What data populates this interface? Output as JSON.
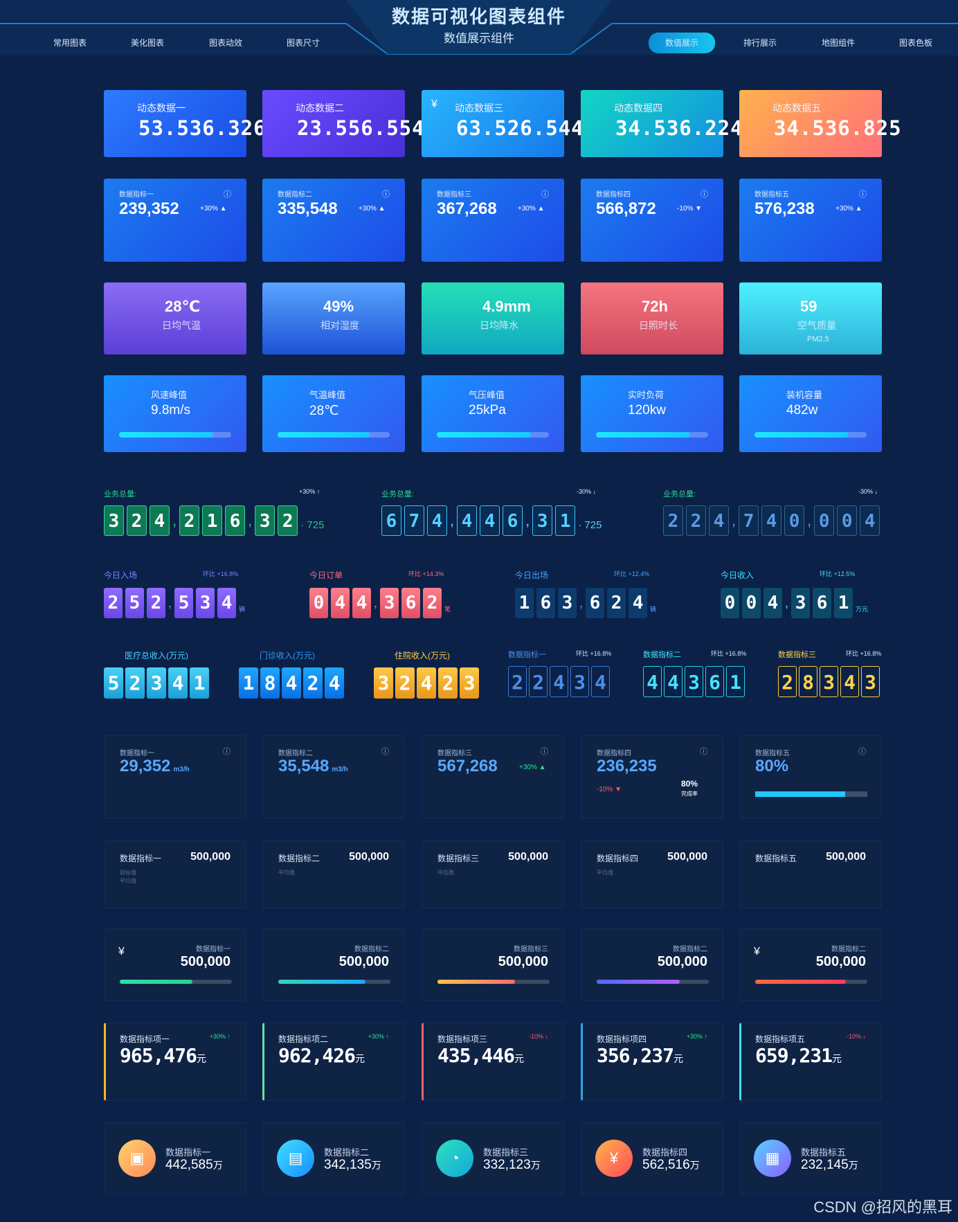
{
  "header": {
    "title": "数据可视化图表组件",
    "subtitle": "数值展示组件"
  },
  "nav": [
    "常用图表",
    "美化图表",
    "图表动效",
    "图表尺寸",
    "数值展示",
    "排行展示",
    "地图组件",
    "图表色板"
  ],
  "dynamic": [
    {
      "label": "动态数据一",
      "value": "53.536.326"
    },
    {
      "label": "动态数据二",
      "value": "23.556.554"
    },
    {
      "label": "动态数据三",
      "value": "63.526.544"
    },
    {
      "label": "动态数据四",
      "value": "34.536.224"
    },
    {
      "label": "动态数据五",
      "value": "34.536.825"
    }
  ],
  "kpi": [
    {
      "label": "数据指标一",
      "value": "239,352",
      "change": "+30%"
    },
    {
      "label": "数据指标二",
      "value": "335,548",
      "change": "+30%"
    },
    {
      "label": "数据指标三",
      "value": "367,268",
      "change": "+30%"
    },
    {
      "label": "数据指标四",
      "value": "566,872",
      "change": "-10%"
    },
    {
      "label": "数据指标五",
      "value": "576,238",
      "change": "+30%"
    }
  ],
  "weather": [
    {
      "value": "28℃",
      "label": "日均气温"
    },
    {
      "value": "49%",
      "label": "相对湿度"
    },
    {
      "value": "4.9mm",
      "label": "日均降水"
    },
    {
      "value": "72h",
      "label": "日照时长"
    },
    {
      "value": "59",
      "label": "空气质量",
      "sub": "PM2.5"
    }
  ],
  "progress": [
    {
      "label": "风速峰值",
      "value": "9.8m/s",
      "fill": 0.84
    },
    {
      "label": "气温峰值",
      "value": "28℃",
      "fill": 0.82
    },
    {
      "label": "气压峰值",
      "value": "25kPa",
      "fill": 0.84
    },
    {
      "label": "实时负荷",
      "value": "120kw",
      "fill": 0.84
    },
    {
      "label": "装机容量",
      "value": "482w",
      "fill": 0.84
    }
  ],
  "totals": [
    {
      "label": "业务总量:",
      "change": "+30%",
      "digits": "324,216,32",
      "tail": "725"
    },
    {
      "label": "业务总量:",
      "change": "-30%",
      "digits": "674,446,31",
      "tail": "725"
    },
    {
      "label": "业务总量:",
      "change": "-30%",
      "digits": "224,740,004",
      "tail": ""
    }
  ],
  "today": [
    {
      "label": "今日入场",
      "change": "环比 +16.8%",
      "digits": "252,534",
      "unit": "辆"
    },
    {
      "label": "今日订单",
      "change": "环比 +14.3%",
      "digits": "044,362",
      "unit": "笔"
    },
    {
      "label": "今日出场",
      "change": "环比 +12.4%",
      "digits": "163,624",
      "unit": "辆"
    },
    {
      "label": "今日收入",
      "change": "环比 +12.5%",
      "digits": "004,361",
      "unit": "万元"
    }
  ],
  "income": [
    {
      "label": "医疗总收入(万元)",
      "digits": "52341"
    },
    {
      "label": "门诊收入(万元)",
      "digits": "18424"
    },
    {
      "label": "住院收入(万元)",
      "digits": "32423"
    }
  ],
  "idx": [
    {
      "label": "数据指标一",
      "change": "环比 +16.8%",
      "digits": "22434"
    },
    {
      "label": "数据指标二",
      "change": "环比 +16.8%",
      "digits": "44361"
    },
    {
      "label": "数据指标三",
      "change": "环比 +16.8%",
      "digits": "28343"
    }
  ],
  "dark1": [
    {
      "label": "数据指标一",
      "value": "29,352",
      "unit": "m3/h"
    },
    {
      "label": "数据指标二",
      "value": "35,548",
      "unit": "m3/h"
    },
    {
      "label": "数据指标三",
      "value": "567,268",
      "change": "+30%"
    },
    {
      "label": "数据指标四",
      "value": "236,235",
      "change": "-10%",
      "ring": "80%",
      "ring_label": "完成率"
    },
    {
      "label": "数据指标五",
      "value": "80%"
    }
  ],
  "dark2": [
    {
      "label": "数据指标一",
      "value": "500,000",
      "l1": "目标值",
      "l2": "平均值"
    },
    {
      "label": "数据指标二",
      "value": "500,000",
      "l1": "平均值"
    },
    {
      "label": "数据指标三",
      "value": "500,000",
      "l1": "中位数"
    },
    {
      "label": "数据指标四",
      "value": "500,000",
      "l1": "平均值"
    },
    {
      "label": "数据指标五",
      "value": "500,000"
    }
  ],
  "dark3": [
    {
      "label": "数据指标一",
      "value": "500,000",
      "fill": 0.65
    },
    {
      "label": "数据指标二",
      "value": "500,000",
      "fill": 0.78
    },
    {
      "label": "数据指标三",
      "value": "500,000",
      "fill": 0.69
    },
    {
      "label": "数据指标二",
      "value": "500,000",
      "fill": 0.74
    },
    {
      "label": "数据指标二",
      "value": "500,000",
      "fill": 0.81
    }
  ],
  "dark4": [
    {
      "label": "数据指标项一",
      "value": "965,476",
      "unit": "元",
      "change": "+30%"
    },
    {
      "label": "数据指标项二",
      "value": "962,426",
      "unit": "元",
      "change": "+30%"
    },
    {
      "label": "数据指标项三",
      "value": "435,446",
      "unit": "元",
      "change": "-10%"
    },
    {
      "label": "数据指标项四",
      "value": "356,237",
      "unit": "元",
      "change": "+30%"
    },
    {
      "label": "数据指标项五",
      "value": "659,231",
      "unit": "元",
      "change": "-10%"
    }
  ],
  "dark5": [
    {
      "label": "数据指标一",
      "value": "442,585",
      "unit": "万"
    },
    {
      "label": "数据指标二",
      "value": "342,135",
      "unit": "万"
    },
    {
      "label": "数据指标三",
      "value": "332,123",
      "unit": "万"
    },
    {
      "label": "数据指标四",
      "value": "562,516",
      "unit": "万"
    },
    {
      "label": "数据指标五",
      "value": "232,145",
      "unit": "万"
    }
  ],
  "watermark": "CSDN @招风的黑耳"
}
